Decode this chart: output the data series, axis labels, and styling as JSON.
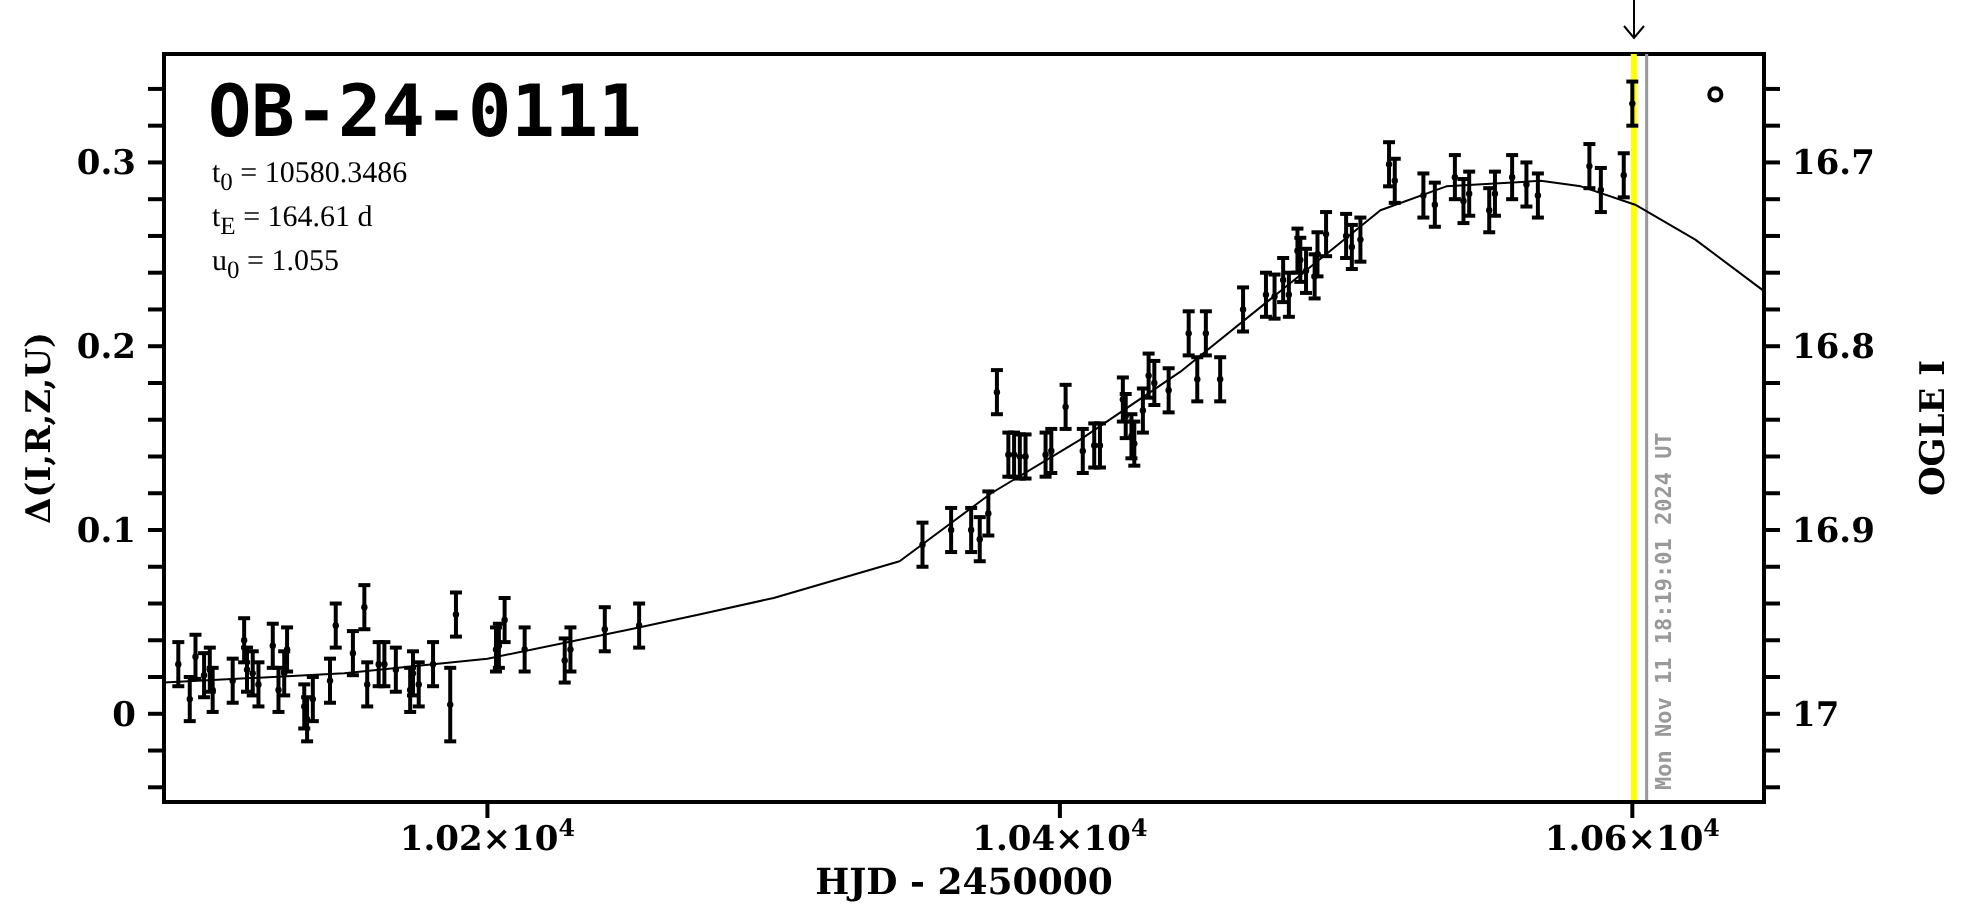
{
  "chart_data": {
    "type": "scatter",
    "title": "OB-24-0111",
    "xlabel": "HJD - 2450000",
    "ylabel": "Δ(I,R,Z,U)",
    "y2label": "OGLE I",
    "annotations": [
      "t$_{0}$ = 10580.3486",
      "t$_{E}$ = 164.61 d",
      "u$_{0}$ = 1.055",
      "Mon Nov 11 18:19:01 2024 UT"
    ],
    "xlim": [
      10087,
      10646
    ],
    "xticks": [
      {
        "value": 10200,
        "label": "1.02×10$^{4}$"
      },
      {
        "value": 10400,
        "label": "1.04×10$^{4}$"
      },
      {
        "value": 10600,
        "label": "1.06×10$^{4}$"
      }
    ],
    "ylim": [
      -0.048,
      0.359
    ],
    "yticks": [
      {
        "value": -0.04,
        "label": null
      },
      {
        "value": -0.02,
        "label": null
      },
      0,
      {
        "value": 0.02,
        "label": null
      },
      {
        "value": 0.04,
        "label": null
      },
      {
        "value": 0.06,
        "label": null
      },
      {
        "value": 0.08,
        "label": null
      },
      0.1,
      {
        "value": 0.12,
        "label": null
      },
      {
        "value": 0.14,
        "label": null
      },
      {
        "value": 0.16,
        "label": null
      },
      {
        "value": 0.18,
        "label": null
      },
      0.2,
      {
        "value": 0.22,
        "label": null
      },
      {
        "value": 0.24,
        "label": null
      },
      {
        "value": 0.26,
        "label": null
      },
      {
        "value": 0.28,
        "label": null
      },
      0.3,
      {
        "value": 0.32,
        "label": null
      },
      {
        "value": 0.34,
        "label": null
      }
    ],
    "y2lim": [
      17.048,
      16.641
    ],
    "y2ticks": [
      {
        "value": 16.66,
        "label": null
      },
      {
        "value": 16.68,
        "label": null
      },
      16.7,
      {
        "value": 16.72,
        "label": null
      },
      {
        "value": 16.74,
        "label": null
      },
      {
        "value": 16.76,
        "label": null
      },
      {
        "value": 16.78,
        "label": null
      },
      16.8,
      {
        "value": 16.82,
        "label": null
      },
      {
        "value": 16.84,
        "label": null
      },
      {
        "value": 16.86,
        "label": null
      },
      {
        "value": 16.88,
        "label": null
      },
      16.9,
      {
        "value": 16.92,
        "label": null
      },
      {
        "value": 16.94,
        "label": null
      },
      {
        "value": 16.96,
        "label": null
      },
      {
        "value": 16.98,
        "label": null
      },
      17,
      {
        "value": 17.02,
        "label": null
      },
      {
        "value": 17.04,
        "label": null
      }
    ],
    "ref_lines": [
      {
        "axis": "x",
        "value": 10600.5,
        "label": null,
        "color": "#ffff00"
      },
      {
        "axis": "x",
        "value": 10605,
        "label": null,
        "color": "#999999"
      }
    ],
    "series": [
      {
        "marker": "circle",
        "color": "#000000",
        "x": [
          10092,
          10096,
          10098,
          10101,
          10103,
          10104,
          10111,
          10115,
          10116,
          10118,
          10120,
          10125,
          10127,
          10129,
          10130,
          10136,
          10137,
          10139,
          10145,
          10147,
          10153,
          10157,
          10158,
          10162,
          10164,
          10168,
          10173,
          10174,
          10176,
          10181,
          10187,
          10189,
          10203,
          10204,
          10206,
          10213,
          10227,
          10229,
          10241,
          10253,
          10352,
          10362,
          10369,
          10372,
          10375,
          10378,
          10382,
          10384,
          10386,
          10388,
          10395,
          10397,
          10402,
          10408,
          10412,
          10414,
          10422,
          10423,
          10425,
          10426,
          10429,
          10431,
          10433,
          10438,
          10445,
          10448,
          10451,
          10456,
          10464,
          10472,
          10475,
          10478,
          10480,
          10483,
          10484,
          10486,
          10489,
          10490,
          10493,
          10500,
          10502,
          10505,
          10515,
          10517,
          10527,
          10531,
          10538,
          10541,
          10543,
          10550,
          10552,
          10558,
          10563,
          10567,
          10585,
          10589,
          10597,
          10600
        ],
        "values": [
          0.027,
          0.008,
          0.031,
          0.021,
          0.024,
          0.013,
          0.018,
          0.04,
          0.024,
          0.022,
          0.016,
          0.037,
          0.013,
          0.022,
          0.035,
          0.004,
          -0.003,
          0.008,
          0.018,
          0.048,
          0.033,
          0.058,
          0.016,
          0.027,
          0.027,
          0.024,
          0.013,
          0.022,
          0.016,
          0.027,
          0.005,
          0.054,
          0.035,
          0.037,
          0.051,
          0.035,
          0.029,
          0.035,
          0.046,
          0.048,
          0.092,
          0.1,
          0.1,
          0.095,
          0.109,
          0.175,
          0.141,
          0.141,
          0.14,
          0.14,
          0.141,
          0.143,
          0.167,
          0.143,
          0.146,
          0.146,
          0.171,
          0.162,
          0.151,
          0.147,
          0.165,
          0.184,
          0.18,
          0.176,
          0.207,
          0.182,
          0.207,
          0.182,
          0.22,
          0.228,
          0.227,
          0.236,
          0.228,
          0.252,
          0.247,
          0.241,
          0.238,
          0.25,
          0.261,
          0.26,
          0.254,
          0.258,
          0.299,
          0.29,
          0.282,
          0.277,
          0.292,
          0.279,
          0.283,
          0.274,
          0.283,
          0.292,
          0.288,
          0.282,
          0.298,
          0.285,
          0.293,
          0.332
        ],
        "errors": [
          0.012,
          0.012,
          0.012,
          0.012,
          0.012,
          0.012,
          0.012,
          0.012,
          0.012,
          0.012,
          0.012,
          0.012,
          0.012,
          0.012,
          0.012,
          0.012,
          0.012,
          0.012,
          0.012,
          0.012,
          0.012,
          0.012,
          0.012,
          0.012,
          0.012,
          0.012,
          0.012,
          0.012,
          0.012,
          0.012,
          0.02,
          0.012,
          0.012,
          0.012,
          0.012,
          0.012,
          0.012,
          0.012,
          0.012,
          0.012,
          0.012,
          0.012,
          0.012,
          0.012,
          0.012,
          0.012,
          0.012,
          0.012,
          0.012,
          0.012,
          0.012,
          0.012,
          0.012,
          0.012,
          0.012,
          0.012,
          0.012,
          0.012,
          0.012,
          0.012,
          0.012,
          0.012,
          0.012,
          0.012,
          0.012,
          0.012,
          0.012,
          0.012,
          0.012,
          0.012,
          0.012,
          0.012,
          0.012,
          0.012,
          0.012,
          0.012,
          0.012,
          0.012,
          0.012,
          0.012,
          0.012,
          0.012,
          0.012,
          0.012,
          0.012,
          0.012,
          0.012,
          0.012,
          0.012,
          0.012,
          0.012,
          0.012,
          0.012,
          0.012,
          0.012,
          0.012,
          0.012,
          0.012
        ]
      },
      {
        "type": "line",
        "color": "#000000",
        "x": [
          10087,
          10150,
          10200,
          10250,
          10274,
          10300,
          10344,
          10376,
          10407,
          10442,
          10489,
          10512,
          10535,
          10568,
          10582,
          10601,
          10622,
          10646
        ],
        "values": [
          0.017,
          0.022,
          0.03,
          0.046,
          0.054,
          0.063,
          0.083,
          0.12,
          0.149,
          0.186,
          0.245,
          0.274,
          0.287,
          0.29,
          0.287,
          0.277,
          0.258,
          0.23
        ]
      },
      {
        "marker": "circle",
        "color": "#000000",
        "x": [
          10629
        ],
        "values": [
          0.337
        ]
      }
    ]
  }
}
